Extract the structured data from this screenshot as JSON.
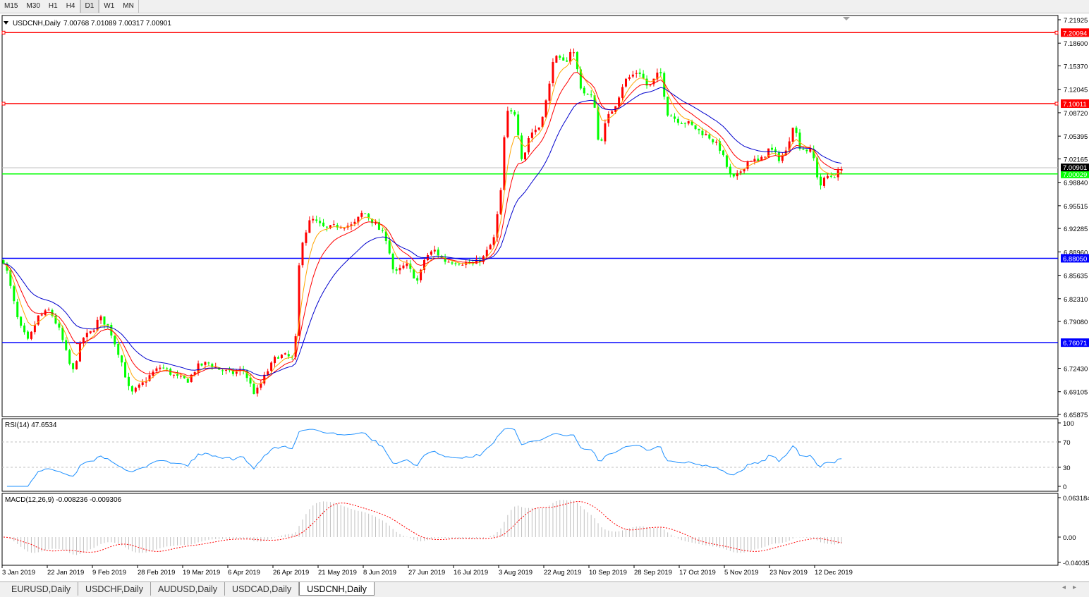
{
  "toolbar": {
    "groups": [
      [
        "M15",
        "M30",
        "H1",
        "H4"
      ],
      [
        "D1"
      ],
      [
        "W1",
        "MN"
      ]
    ],
    "active": "D1"
  },
  "chart_header": {
    "symbol": "USDCNH,Daily",
    "open": "7.00768",
    "high": "7.01089",
    "low": "7.00317",
    "close": "7.00901"
  },
  "rsi_header": "RSI(14) 47.6534",
  "macd_header": "MACD(12,26,9) -0.008236 -0.009306",
  "price_axis": [
    "7.21925",
    "7.18600",
    "7.15370",
    "7.12045",
    "7.08720",
    "7.05395",
    "7.02165",
    "6.98840",
    "6.95515",
    "6.92285",
    "6.88960",
    "6.85635",
    "6.82310",
    "6.79080",
    "6.72430",
    "6.69105",
    "6.65875"
  ],
  "rsi_axis": [
    "100",
    "70",
    "30",
    "0"
  ],
  "macd_axis": [
    "0.063184",
    "0.00",
    "-0.040355"
  ],
  "date_axis": [
    "3 Jan 2019",
    "22 Jan 2019",
    "9 Feb 2019",
    "28 Feb 2019",
    "19 Mar 2019",
    "6 Apr 2019",
    "26 Apr 2019",
    "21 May 2019",
    "8 Jun 2019",
    "27 Jun 2019",
    "16 Jul 2019",
    "3 Aug 2019",
    "22 Aug 2019",
    "10 Sep 2019",
    "28 Sep 2019",
    "17 Oct 2019",
    "5 Nov 2019",
    "23 Nov 2019",
    "12 Dec 2019"
  ],
  "levels": [
    {
      "price": "7.20094",
      "color": "#ff0000"
    },
    {
      "price": "7.10011",
      "color": "#ff0000"
    },
    {
      "price": "7.00029",
      "color": "#00ff00"
    },
    {
      "price": "6.88050",
      "color": "#0000ff"
    },
    {
      "price": "6.76071",
      "color": "#0000ff"
    }
  ],
  "current_price": "7.00901",
  "tabs": [
    "EURUSD,Daily",
    "USDCHF,Daily",
    "AUDUSD,Daily",
    "USDCAD,Daily",
    "USDCNH,Daily"
  ],
  "active_tab": "USDCNH,Daily",
  "colors": {
    "bull": "#ff0000",
    "bear": "#00ff00",
    "ma_fast": "#ffa500",
    "ma_mid": "#ff0000",
    "ma_slow": "#0000cd",
    "rsi": "#1e90ff",
    "macd_hist": "#c0c0c0",
    "macd_signal": "#ff0000"
  },
  "chart_data": {
    "type": "candlestick",
    "symbol": "USDCNH",
    "timeframe": "Daily",
    "ylim": [
      6.65875,
      7.21925
    ],
    "indicators": [
      "RSI(14)",
      "MACD(12,26,9)"
    ],
    "rsi_levels": [
      30,
      70
    ],
    "closes": [
      [
        "2019-01-04",
        6.877
      ],
      [
        "2019-01-10",
        6.787
      ],
      [
        "2019-01-14",
        6.762
      ],
      [
        "2019-01-18",
        6.797
      ],
      [
        "2019-01-23",
        6.807
      ],
      [
        "2019-01-27",
        6.777
      ],
      [
        "2019-02-01",
        6.717
      ],
      [
        "2019-02-05",
        6.767
      ],
      [
        "2019-02-09",
        6.777
      ],
      [
        "2019-02-12",
        6.797
      ],
      [
        "2019-02-16",
        6.782
      ],
      [
        "2019-02-21",
        6.737
      ],
      [
        "2019-02-25",
        6.687
      ],
      [
        "2019-03-02",
        6.702
      ],
      [
        "2019-03-06",
        6.717
      ],
      [
        "2019-03-10",
        6.727
      ],
      [
        "2019-03-16",
        6.712
      ],
      [
        "2019-03-21",
        6.707
      ],
      [
        "2019-03-25",
        6.727
      ],
      [
        "2019-03-29",
        6.732
      ],
      [
        "2019-04-03",
        6.722
      ],
      [
        "2019-04-08",
        6.717
      ],
      [
        "2019-04-13",
        6.722
      ],
      [
        "2019-04-18",
        6.687
      ],
      [
        "2019-04-23",
        6.717
      ],
      [
        "2019-04-28",
        6.742
      ],
      [
        "2019-05-03",
        6.742
      ],
      [
        "2019-05-08",
        6.737
      ],
      [
        "2019-05-11",
        6.897
      ],
      [
        "2019-05-17",
        6.937
      ],
      [
        "2019-05-24",
        6.922
      ],
      [
        "2019-05-29",
        6.927
      ],
      [
        "2019-06-04",
        6.927
      ],
      [
        "2019-06-08",
        6.947
      ],
      [
        "2019-06-13",
        6.929
      ],
      [
        "2019-06-18",
        6.907
      ],
      [
        "2019-06-21",
        6.857
      ],
      [
        "2019-06-26",
        6.872
      ],
      [
        "2019-07-01",
        6.847
      ],
      [
        "2019-07-04",
        6.882
      ],
      [
        "2019-07-08",
        6.892
      ],
      [
        "2019-07-12",
        6.877
      ],
      [
        "2019-07-18",
        6.875
      ],
      [
        "2019-07-24",
        6.872
      ],
      [
        "2019-07-28",
        6.882
      ],
      [
        "2019-08-01",
        6.907
      ],
      [
        "2019-08-04",
        6.977
      ],
      [
        "2019-08-06",
        7.087
      ],
      [
        "2019-08-10",
        7.087
      ],
      [
        "2019-08-13",
        7.017
      ],
      [
        "2019-08-16",
        7.057
      ],
      [
        "2019-08-20",
        7.067
      ],
      [
        "2019-08-24",
        7.117
      ],
      [
        "2019-08-26",
        7.167
      ],
      [
        "2019-08-31",
        7.157
      ],
      [
        "2019-09-03",
        7.182
      ],
      [
        "2019-09-07",
        7.117
      ],
      [
        "2019-09-12",
        7.107
      ],
      [
        "2019-09-14",
        7.037
      ],
      [
        "2019-09-17",
        7.077
      ],
      [
        "2019-09-21",
        7.102
      ],
      [
        "2019-09-24",
        7.132
      ],
      [
        "2019-09-30",
        7.147
      ],
      [
        "2019-10-04",
        7.122
      ],
      [
        "2019-10-09",
        7.147
      ],
      [
        "2019-10-12",
        7.087
      ],
      [
        "2019-10-16",
        7.077
      ],
      [
        "2019-10-21",
        7.072
      ],
      [
        "2019-10-25",
        7.062
      ],
      [
        "2019-10-30",
        7.052
      ],
      [
        "2019-11-03",
        7.037
      ],
      [
        "2019-11-08",
        6.992
      ],
      [
        "2019-11-10",
        6.997
      ],
      [
        "2019-11-15",
        7.022
      ],
      [
        "2019-11-19",
        7.017
      ],
      [
        "2019-11-23",
        7.037
      ],
      [
        "2019-11-27",
        7.022
      ],
      [
        "2019-11-30",
        7.032
      ],
      [
        "2019-12-03",
        7.072
      ],
      [
        "2019-12-06",
        7.037
      ],
      [
        "2019-12-11",
        7.032
      ],
      [
        "2019-12-14",
        6.982
      ],
      [
        "2019-12-17",
        6.997
      ],
      [
        "2019-12-20",
        6.997
      ],
      [
        "2019-12-24",
        7.00901
      ]
    ]
  }
}
